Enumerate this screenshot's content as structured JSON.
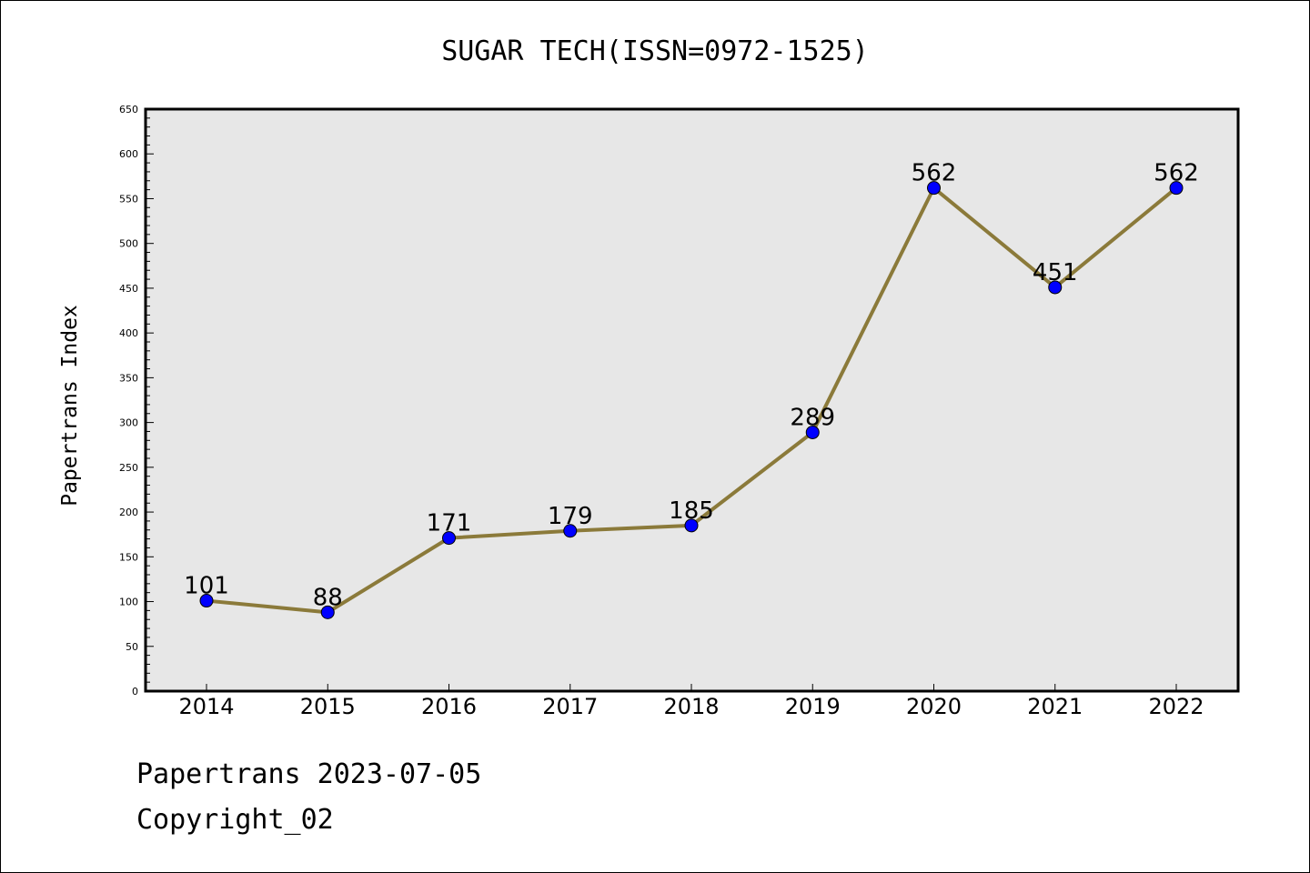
{
  "chart_data": {
    "type": "line",
    "title": "SUGAR TECH(ISSN=0972-1525)",
    "xlabel": "",
    "ylabel": "Papertrans Index",
    "categories": [
      "2014",
      "2015",
      "2016",
      "2017",
      "2018",
      "2019",
      "2020",
      "2021",
      "2022"
    ],
    "series": [
      {
        "values": [
          101,
          88,
          171,
          179,
          185,
          289,
          562,
          451,
          562
        ],
        "data_labels": [
          "101",
          "88",
          "171",
          "179",
          "185",
          "289",
          "562",
          "451",
          "562"
        ]
      }
    ],
    "ylim": [
      0,
      650
    ],
    "yticks": [
      "0",
      "50",
      "100",
      "150",
      "200",
      "250",
      "300",
      "350",
      "400",
      "450",
      "500",
      "550",
      "600",
      "650"
    ],
    "grid": false,
    "legend": "none",
    "colors": {
      "plot_background": "#e7e7e7",
      "line": "#8b7a3a",
      "marker": "#0000ff",
      "axis": "#000000"
    }
  },
  "footer": {
    "line1": "Papertrans 2023-07-05",
    "line2": "Copyright_02"
  }
}
